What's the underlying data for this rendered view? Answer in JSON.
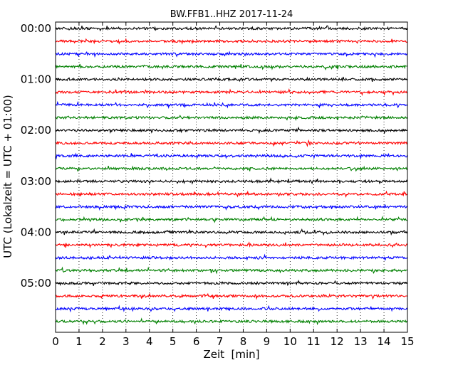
{
  "chart_data": {
    "type": "line",
    "title": "BW.FFB1..HHZ 2017-11-24",
    "xlabel": "Zeit  [min]",
    "ylabel": "UTC (Lokalzeit = UTC + 01:00)",
    "xlim": [
      0,
      15
    ],
    "x_ticks": [
      "0",
      "1",
      "2",
      "3",
      "4",
      "5",
      "6",
      "7",
      "8",
      "9",
      "10",
      "11",
      "12",
      "13",
      "14",
      "15"
    ],
    "y_tick_labels": [
      "00:00",
      "01:00",
      "02:00",
      "03:00",
      "04:00",
      "05:00"
    ],
    "row_interval_minutes": 15,
    "num_rows": 24,
    "colors": [
      "#000000",
      "#ff0000",
      "#0000ff",
      "#008000"
    ],
    "grid": "vertical dotted",
    "legend": "none"
  }
}
